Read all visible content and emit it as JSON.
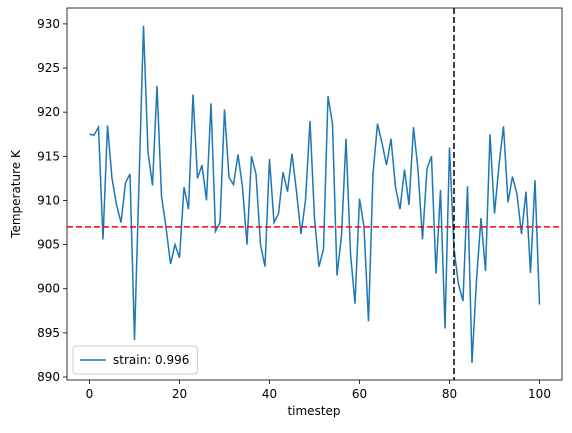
{
  "chart_data": {
    "type": "line",
    "xlabel": "timestep",
    "ylabel": "Temperature K",
    "x": [
      0,
      1,
      2,
      3,
      4,
      5,
      6,
      7,
      8,
      9,
      10,
      11,
      12,
      13,
      14,
      15,
      16,
      17,
      18,
      19,
      20,
      21,
      22,
      23,
      24,
      25,
      26,
      27,
      28,
      29,
      30,
      31,
      32,
      33,
      34,
      35,
      36,
      37,
      38,
      39,
      40,
      41,
      42,
      43,
      44,
      45,
      46,
      47,
      48,
      49,
      50,
      51,
      52,
      53,
      54,
      55,
      56,
      57,
      58,
      59,
      60,
      61,
      62,
      63,
      64,
      65,
      66,
      67,
      68,
      69,
      70,
      71,
      72,
      73,
      74,
      75,
      76,
      77,
      78,
      79,
      80,
      81,
      82,
      83,
      84,
      85,
      86,
      87,
      88,
      89,
      90,
      91,
      92,
      93,
      94,
      95,
      96,
      97,
      98,
      99,
      100
    ],
    "series": [
      {
        "name": "strain: 0.996",
        "color": "#1f77b4",
        "values": [
          917.5,
          917.4,
          918.3,
          905.6,
          918.5,
          912.5,
          909.5,
          907.5,
          912,
          913,
          894.2,
          912,
          929.8,
          915.5,
          911.7,
          923,
          910.5,
          907,
          902.8,
          905,
          903.5,
          911.5,
          909,
          922,
          912.5,
          914,
          910,
          921,
          906.5,
          907.5,
          920.3,
          912.6,
          911.8,
          915.2,
          911.5,
          905,
          915,
          913,
          905,
          902.5,
          914.7,
          907.5,
          908.5,
          913.2,
          911,
          915.3,
          911,
          906.2,
          910,
          919,
          908,
          902.5,
          904.5,
          921.8,
          918.7,
          901.5,
          906,
          917,
          904,
          898.3,
          910.2,
          907,
          896.3,
          913,
          918.7,
          916.5,
          914,
          917,
          911.5,
          909,
          913.5,
          909.5,
          918.3,
          913.5,
          905.6,
          913.6,
          915,
          901.7,
          911.2,
          895.5,
          916,
          904.5,
          900.5,
          898.6,
          911.6,
          891.6,
          901,
          908,
          902,
          917.5,
          908.5,
          914,
          918.4,
          909.8,
          912.7,
          910.7,
          906.2,
          911,
          901.8,
          912.3,
          898.2
        ]
      }
    ],
    "hline": 907,
    "hline_color": "#ff0000",
    "vline": 81,
    "vline_color": "#000000",
    "xlim": [
      -5,
      105
    ],
    "ylim": [
      889.66,
      931.8
    ],
    "xticks": [
      0,
      20,
      40,
      60,
      80,
      100
    ],
    "yticks": [
      890,
      895,
      900,
      905,
      910,
      915,
      920,
      925,
      930
    ],
    "legend": "lower left"
  }
}
